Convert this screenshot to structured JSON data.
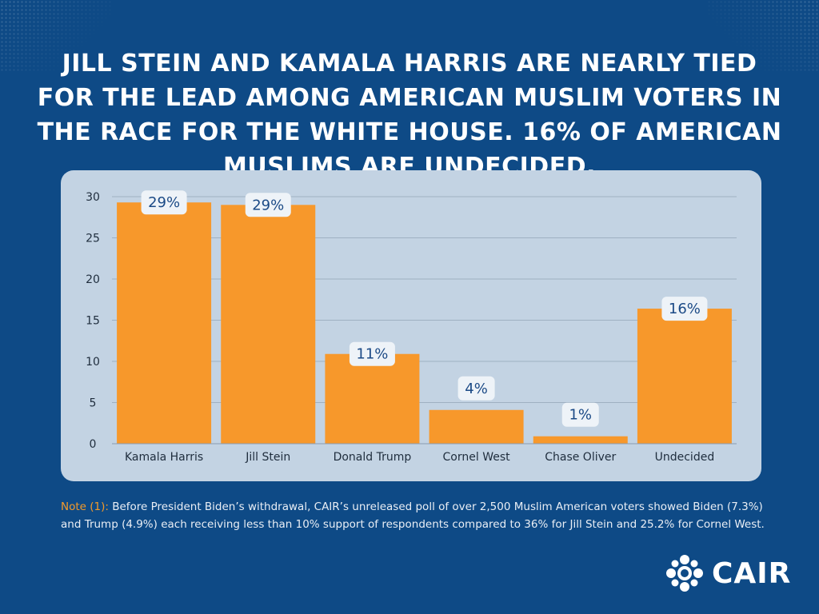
{
  "headline": "JILL STEIN AND KAMALA HARRIS ARE NEARLY TIED FOR THE LEAD AMONG AMERICAN MUSLIM VOTERS IN THE RACE FOR THE WHITE HOUSE. 16% OF AMERICAN MUSLIMS ARE UNDECIDED.",
  "colors": {
    "background": "#0e4a86",
    "card": "#c3d3e3",
    "bar": "#f7982b",
    "label_box": "#eef3f8",
    "label_text": "#1b4a86",
    "note_accent": "#f39a2a"
  },
  "chart_data": {
    "type": "bar",
    "title": "",
    "xlabel": "",
    "ylabel": "",
    "categories": [
      "Kamala Harris",
      "Jill Stein",
      "Donald Trump",
      "Cornel West",
      "Chase Oliver",
      "Undecided"
    ],
    "values": [
      29.3,
      29.0,
      10.9,
      4.1,
      0.9,
      16.4
    ],
    "value_labels": [
      "29%",
      "29%",
      "11%",
      "4%",
      "1%",
      "16%"
    ],
    "ylim": [
      0,
      30
    ],
    "yticks": [
      0,
      5,
      10,
      15,
      20,
      25,
      30
    ],
    "grid": true
  },
  "note": {
    "label": "Note (1):",
    "text": " Before President Biden’s withdrawal, CAIR’s unreleased poll of over 2,500 Muslim American voters showed Biden (7.3%) and Trump (4.9%) each receiving less than 10% support of respondents compared to 36% for Jill Stein and 25.2% for Cornel West."
  },
  "logo": {
    "text": "CAIR",
    "icon": "cair-emblem-icon"
  }
}
